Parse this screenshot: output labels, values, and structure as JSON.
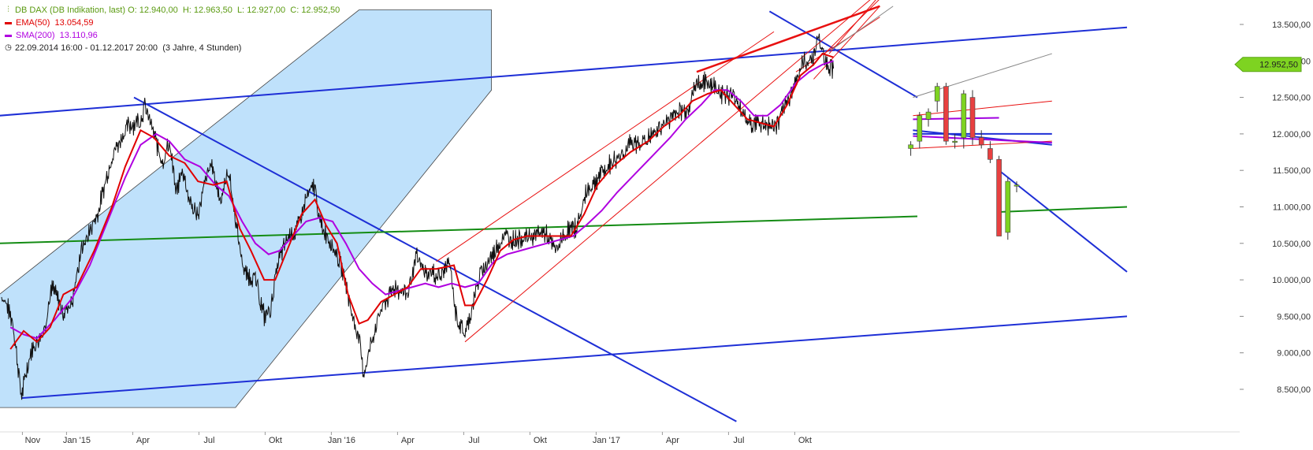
{
  "chart_data": {
    "type": "line",
    "instrument": "DB DAX (DB Indikation, last)",
    "ohlc": {
      "o_label": "O:",
      "o": "12.940,00",
      "h_label": "H:",
      "h": "12.963,50",
      "l_label": "L:",
      "l": "12.927,00",
      "c_label": "C:",
      "c": "12.952,50"
    },
    "indicators": [
      {
        "name": "EMA(50)",
        "value": "13.054,59",
        "color": "#e00000"
      },
      {
        "name": "SMA(200)",
        "value": "13.110,96",
        "color": "#b000e0"
      }
    ],
    "range_text": "22.09.2014 16:00 - 01.12.2017 20:00",
    "range_note": "(3 Jahre, 4 Stunden)",
    "last_price_label": "12.952,50",
    "last_price": 12952.5,
    "ylim": [
      8250,
      13650
    ],
    "y_ticks": [
      {
        "v": 13500,
        "label": "13.500,00"
      },
      {
        "v": 13000,
        "label": "13.000,00"
      },
      {
        "v": 12500,
        "label": "12.500,00"
      },
      {
        "v": 12000,
        "label": "12.000,00"
      },
      {
        "v": 11500,
        "label": "11.500,00"
      },
      {
        "v": 11000,
        "label": "11.000,00"
      },
      {
        "v": 10500,
        "label": "10.500,00"
      },
      {
        "v": 10000,
        "label": "10.000,00"
      },
      {
        "v": 9500,
        "label": "9.500,00"
      },
      {
        "v": 9000,
        "label": "9.000,00"
      },
      {
        "v": 8500,
        "label": "8.500,00"
      }
    ],
    "x_ticks": [
      {
        "t": 1.3,
        "label": "Nov"
      },
      {
        "t": 3.3,
        "label": "Jan '15"
      },
      {
        "t": 6.3,
        "label": "Apr"
      },
      {
        "t": 9.3,
        "label": "Jul"
      },
      {
        "t": 12.3,
        "label": "Okt"
      },
      {
        "t": 15.3,
        "label": "Jan '16"
      },
      {
        "t": 18.3,
        "label": "Apr"
      },
      {
        "t": 21.3,
        "label": "Jul"
      },
      {
        "t": 24.3,
        "label": "Okt"
      },
      {
        "t": 27.3,
        "label": "Jan '17"
      },
      {
        "t": 30.3,
        "label": "Apr"
      },
      {
        "t": 33.3,
        "label": "Jul"
      },
      {
        "t": 36.3,
        "label": "Okt"
      }
    ],
    "price_keypoints": [
      [
        0,
        9800
      ],
      [
        0.5,
        9450
      ],
      [
        0.9,
        8400
      ],
      [
        1.3,
        9000
      ],
      [
        1.9,
        9300
      ],
      [
        2.3,
        9900
      ],
      [
        2.8,
        9550
      ],
      [
        3.2,
        9700
      ],
      [
        3.6,
        10400
      ],
      [
        4.4,
        10950
      ],
      [
        5.0,
        11700
      ],
      [
        5.7,
        12100
      ],
      [
        6.3,
        12200
      ],
      [
        6.5,
        12380
      ],
      [
        6.9,
        12000
      ],
      [
        7.3,
        11600
      ],
      [
        7.6,
        11900
      ],
      [
        7.9,
        11200
      ],
      [
        8.2,
        11500
      ],
      [
        8.6,
        11000
      ],
      [
        8.9,
        10900
      ],
      [
        9.2,
        11300
      ],
      [
        9.5,
        11600
      ],
      [
        9.9,
        11100
      ],
      [
        10.3,
        11500
      ],
      [
        10.7,
        10600
      ],
      [
        11.0,
        10100
      ],
      [
        11.5,
        10000
      ],
      [
        11.9,
        9500
      ],
      [
        12.2,
        9600
      ],
      [
        12.5,
        10200
      ],
      [
        13.0,
        10600
      ],
      [
        13.4,
        10700
      ],
      [
        13.8,
        11100
      ],
      [
        14.2,
        11300
      ],
      [
        14.4,
        10800
      ],
      [
        14.8,
        10600
      ],
      [
        15.1,
        10400
      ],
      [
        15.5,
        10100
      ],
      [
        15.9,
        9500
      ],
      [
        16.2,
        9200
      ],
      [
        16.4,
        8700
      ],
      [
        16.9,
        9300
      ],
      [
        17.2,
        9600
      ],
      [
        17.8,
        9900
      ],
      [
        18.4,
        9800
      ],
      [
        18.8,
        10300
      ],
      [
        19.2,
        10100
      ],
      [
        19.9,
        10050
      ],
      [
        20.3,
        10250
      ],
      [
        20.6,
        9500
      ],
      [
        21.0,
        9250
      ],
      [
        21.3,
        9600
      ],
      [
        21.7,
        10100
      ],
      [
        22.3,
        10350
      ],
      [
        22.7,
        10600
      ],
      [
        23.3,
        10550
      ],
      [
        23.9,
        10600
      ],
      [
        24.6,
        10650
      ],
      [
        25.1,
        10400
      ],
      [
        25.6,
        10650
      ],
      [
        26.1,
        10750
      ],
      [
        26.5,
        11200
      ],
      [
        27.0,
        11400
      ],
      [
        27.8,
        11650
      ],
      [
        28.5,
        11850
      ],
      [
        29.2,
        11900
      ],
      [
        29.9,
        12100
      ],
      [
        30.6,
        12300
      ],
      [
        31.1,
        12350
      ],
      [
        31.5,
        12700
      ],
      [
        32.1,
        12700
      ],
      [
        32.7,
        12550
      ],
      [
        33.3,
        12500
      ],
      [
        33.8,
        12150
      ],
      [
        34.3,
        12150
      ],
      [
        35.0,
        12100
      ],
      [
        35.3,
        12200
      ],
      [
        35.8,
        12600
      ],
      [
        36.3,
        12950
      ],
      [
        36.8,
        13050
      ],
      [
        37.0,
        13350
      ],
      [
        37.3,
        13000
      ],
      [
        37.7,
        12900
      ]
    ],
    "ema50_keypoints": [
      [
        0.4,
        9050
      ],
      [
        1.0,
        9300
      ],
      [
        1.6,
        9150
      ],
      [
        2.2,
        9350
      ],
      [
        2.8,
        9800
      ],
      [
        3.4,
        9900
      ],
      [
        4.2,
        10400
      ],
      [
        5.0,
        11000
      ],
      [
        5.6,
        11550
      ],
      [
        6.3,
        12050
      ],
      [
        6.9,
        11950
      ],
      [
        7.6,
        11700
      ],
      [
        8.3,
        11600
      ],
      [
        8.9,
        11350
      ],
      [
        9.6,
        11300
      ],
      [
        10.2,
        11350
      ],
      [
        10.8,
        10700
      ],
      [
        11.3,
        10400
      ],
      [
        11.9,
        10000
      ],
      [
        12.4,
        10000
      ],
      [
        13.0,
        10450
      ],
      [
        13.6,
        10900
      ],
      [
        14.2,
        11100
      ],
      [
        14.7,
        10750
      ],
      [
        15.2,
        10500
      ],
      [
        15.7,
        9800
      ],
      [
        16.2,
        9400
      ],
      [
        16.6,
        9450
      ],
      [
        17.2,
        9700
      ],
      [
        17.8,
        9800
      ],
      [
        18.4,
        9900
      ],
      [
        19.0,
        10150
      ],
      [
        19.7,
        10150
      ],
      [
        20.5,
        10200
      ],
      [
        21.0,
        9650
      ],
      [
        21.4,
        9650
      ],
      [
        22.0,
        10000
      ],
      [
        22.6,
        10400
      ],
      [
        23.2,
        10550
      ],
      [
        23.8,
        10600
      ],
      [
        24.5,
        10600
      ],
      [
        25.2,
        10600
      ],
      [
        25.8,
        10600
      ],
      [
        26.4,
        10900
      ],
      [
        27.0,
        11300
      ],
      [
        27.7,
        11550
      ],
      [
        28.5,
        11750
      ],
      [
        29.3,
        11900
      ],
      [
        30.0,
        12100
      ],
      [
        30.7,
        12250
      ],
      [
        31.3,
        12450
      ],
      [
        32.0,
        12550
      ],
      [
        32.6,
        12600
      ],
      [
        33.2,
        12400
      ],
      [
        33.8,
        12200
      ],
      [
        34.4,
        12150
      ],
      [
        35.0,
        12100
      ],
      [
        35.6,
        12400
      ],
      [
        36.2,
        12800
      ],
      [
        36.8,
        12950
      ],
      [
        37.2,
        13100
      ],
      [
        37.7,
        13050
      ]
    ],
    "sma200_keypoints": [
      [
        0.4,
        9350
      ],
      [
        1.0,
        9250
      ],
      [
        1.6,
        9200
      ],
      [
        2.4,
        9450
      ],
      [
        3.2,
        9750
      ],
      [
        4.0,
        10200
      ],
      [
        4.8,
        10800
      ],
      [
        5.6,
        11400
      ],
      [
        6.3,
        11850
      ],
      [
        7.0,
        12000
      ],
      [
        7.6,
        11900
      ],
      [
        8.3,
        11650
      ],
      [
        9.0,
        11550
      ],
      [
        9.7,
        11300
      ],
      [
        10.3,
        11150
      ],
      [
        10.9,
        10800
      ],
      [
        11.5,
        10500
      ],
      [
        12.1,
        10350
      ],
      [
        12.6,
        10400
      ],
      [
        13.2,
        10600
      ],
      [
        13.8,
        10800
      ],
      [
        14.4,
        10850
      ],
      [
        15.0,
        10800
      ],
      [
        15.6,
        10500
      ],
      [
        16.2,
        10150
      ],
      [
        16.8,
        9950
      ],
      [
        17.4,
        9800
      ],
      [
        18.0,
        9850
      ],
      [
        18.6,
        9900
      ],
      [
        19.2,
        9950
      ],
      [
        19.8,
        9900
      ],
      [
        20.4,
        9950
      ],
      [
        21.0,
        9900
      ],
      [
        21.6,
        9950
      ],
      [
        22.3,
        10250
      ],
      [
        22.9,
        10350
      ],
      [
        23.5,
        10400
      ],
      [
        24.1,
        10450
      ],
      [
        24.7,
        10500
      ],
      [
        25.3,
        10550
      ],
      [
        25.9,
        10600
      ],
      [
        26.5,
        10750
      ],
      [
        27.2,
        10950
      ],
      [
        27.9,
        11200
      ],
      [
        28.7,
        11450
      ],
      [
        29.5,
        11700
      ],
      [
        30.3,
        11950
      ],
      [
        31.0,
        12200
      ],
      [
        31.7,
        12400
      ],
      [
        32.3,
        12600
      ],
      [
        32.9,
        12600
      ],
      [
        33.5,
        12450
      ],
      [
        34.1,
        12250
      ],
      [
        34.7,
        12250
      ],
      [
        35.3,
        12400
      ],
      [
        36.0,
        12700
      ],
      [
        36.6,
        12850
      ],
      [
        37.2,
        12950
      ],
      [
        37.7,
        13000
      ]
    ],
    "candles": [
      {
        "t": 41.2,
        "o": 11800,
        "h": 11900,
        "l": 11700,
        "c": 11850
      },
      {
        "t": 41.6,
        "o": 11900,
        "h": 12300,
        "l": 11800,
        "c": 12250
      },
      {
        "t": 42.0,
        "o": 12200,
        "h": 12350,
        "l": 12100,
        "c": 12300
      },
      {
        "t": 42.4,
        "o": 12450,
        "h": 12700,
        "l": 12300,
        "c": 12650
      },
      {
        "t": 42.8,
        "o": 12650,
        "h": 12700,
        "l": 11850,
        "c": 11900
      },
      {
        "t": 43.2,
        "o": 11900,
        "h": 12000,
        "l": 11800,
        "c": 11900
      },
      {
        "t": 43.6,
        "o": 11950,
        "h": 12600,
        "l": 11800,
        "c": 12550
      },
      {
        "t": 44.0,
        "o": 12500,
        "h": 12600,
        "l": 11850,
        "c": 11950
      },
      {
        "t": 44.4,
        "o": 11950,
        "h": 12050,
        "l": 11800,
        "c": 11850
      },
      {
        "t": 44.8,
        "o": 11800,
        "h": 11900,
        "l": 11600,
        "c": 11650
      },
      {
        "t": 45.2,
        "o": 11650,
        "h": 11700,
        "l": 10600,
        "c": 10600
      },
      {
        "t": 45.6,
        "o": 10650,
        "h": 11400,
        "l": 10550,
        "c": 11350
      },
      {
        "t": 46.0,
        "o": 11300,
        "h": 11350,
        "l": 11200,
        "c": 11300
      }
    ],
    "trendlines": [
      {
        "color": "#1e2fd6",
        "width": 2,
        "pts": [
          [
            -0.1,
            12250
          ],
          [
            51,
            13460
          ]
        ]
      },
      {
        "color": "#1e2fd6",
        "width": 2,
        "pts": [
          [
            0.9,
            8380
          ],
          [
            51,
            9500
          ]
        ]
      },
      {
        "color": "#1e2fd6",
        "width": 2,
        "pts": [
          [
            6.0,
            12500
          ],
          [
            33.3,
            8060
          ]
        ]
      },
      {
        "color": "#1e2fd6",
        "width": 2,
        "pts": [
          [
            34.8,
            13680
          ],
          [
            41.5,
            12500
          ]
        ]
      },
      {
        "color": "#1e2fd6",
        "width": 2,
        "pts": [
          [
            45.2,
            11500
          ],
          [
            51,
            10110
          ]
        ]
      },
      {
        "color": "#1e2fd6",
        "width": 2,
        "pts": [
          [
            41.3,
            12050
          ],
          [
            47.6,
            11850
          ]
        ]
      },
      {
        "color": "#1e2fd6",
        "width": 2,
        "pts": [
          [
            41.3,
            12000
          ],
          [
            47.6,
            12000
          ]
        ]
      },
      {
        "color": "#148c14",
        "width": 2,
        "pts": [
          [
            -0.1,
            10500
          ],
          [
            41.5,
            10870
          ]
        ]
      },
      {
        "color": "#148c14",
        "width": 2,
        "pts": [
          [
            45.2,
            10930
          ],
          [
            51,
            11000
          ]
        ]
      },
      {
        "color": "#e81010",
        "width": 2.5,
        "pts": [
          [
            31.5,
            12850
          ],
          [
            39.8,
            13750
          ]
        ]
      },
      {
        "color": "#e81010",
        "width": 1,
        "pts": [
          [
            19.7,
            10250
          ],
          [
            35.0,
            13400
          ]
        ]
      },
      {
        "color": "#e81010",
        "width": 1,
        "pts": [
          [
            21.0,
            9150
          ],
          [
            39.8,
            13950
          ]
        ]
      },
      {
        "color": "#e81010",
        "width": 1,
        "pts": [
          [
            36.0,
            12850
          ],
          [
            39.8,
            13600
          ]
        ]
      },
      {
        "color": "#e81010",
        "width": 1,
        "pts": [
          [
            37.5,
            13100
          ],
          [
            39.8,
            13900
          ]
        ]
      },
      {
        "color": "#e81010",
        "width": 1,
        "pts": [
          [
            36.8,
            12750
          ],
          [
            39.8,
            13750
          ]
        ]
      },
      {
        "color": "#e81010",
        "width": 1,
        "pts": [
          [
            37.3,
            13100
          ],
          [
            39.8,
            13850
          ]
        ]
      },
      {
        "color": "#e81010",
        "width": 1,
        "pts": [
          [
            41.3,
            12250
          ],
          [
            47.6,
            12450
          ]
        ]
      },
      {
        "color": "#e81010",
        "width": 1,
        "pts": [
          [
            41.3,
            11800
          ],
          [
            47.6,
            11900
          ]
        ]
      },
      {
        "color": "#a000e0",
        "width": 2,
        "pts": [
          [
            41.3,
            12200
          ],
          [
            45.2,
            12220
          ]
        ]
      },
      {
        "color": "#a000e0",
        "width": 2,
        "pts": [
          [
            41.3,
            11970
          ],
          [
            47.6,
            11880
          ]
        ]
      },
      {
        "color": "#888888",
        "width": 1,
        "pts": [
          [
            37.6,
            13150
          ],
          [
            40.4,
            13750
          ]
        ]
      },
      {
        "color": "#888888",
        "width": 1,
        "pts": [
          [
            41.3,
            12500
          ],
          [
            47.6,
            13100
          ]
        ]
      }
    ],
    "channel_polygon": [
      [
        -0.1,
        9800
      ],
      [
        16.2,
        13700
      ],
      [
        22.2,
        13700
      ],
      [
        22.2,
        12600
      ],
      [
        10.6,
        8250
      ],
      [
        -0.1,
        8250
      ]
    ]
  }
}
